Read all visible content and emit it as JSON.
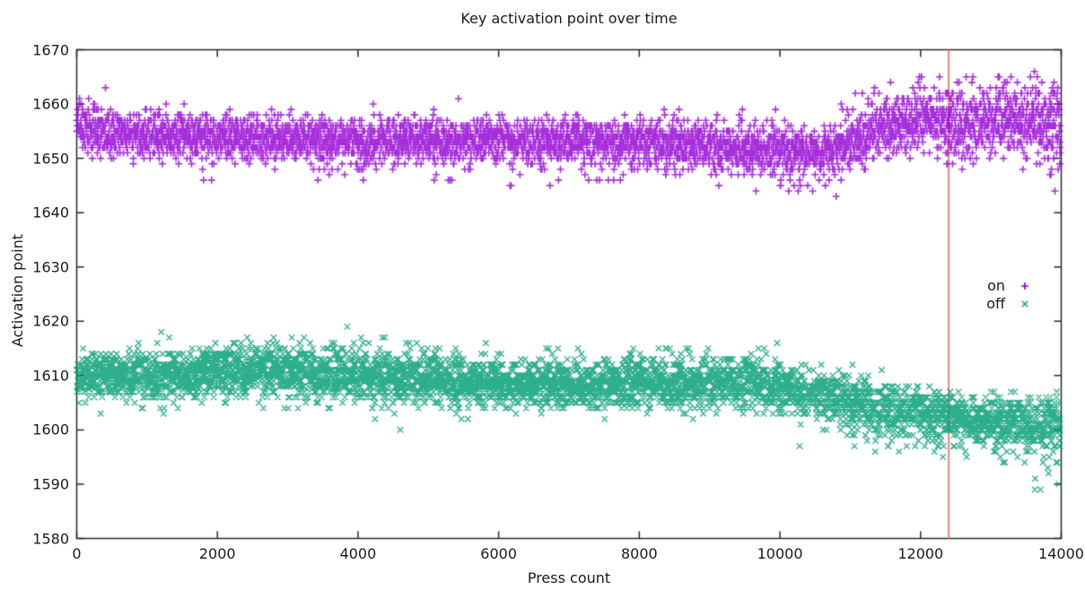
{
  "page": {
    "background": "#ffffff"
  },
  "chart_data": {
    "type": "scatter",
    "title": "Key activation point over time",
    "xlabel": "Press count",
    "ylabel": "Activation point",
    "xlim": [
      0,
      14000
    ],
    "ylim": [
      1580,
      1670
    ],
    "xticks": [
      0,
      2000,
      4000,
      6000,
      8000,
      10000,
      12000,
      14000
    ],
    "yticks": [
      1580,
      1590,
      1600,
      1610,
      1620,
      1630,
      1640,
      1650,
      1660,
      1670
    ],
    "grid": false,
    "y_values_integer": true,
    "border_color": "#2a2a2a",
    "tick_length": 8,
    "legend": {
      "position": "inside-right",
      "entries": [
        {
          "label": "on",
          "marker": "plus",
          "color": "#9400d3"
        },
        {
          "label": "off",
          "marker": "cross",
          "color": "#009e73"
        }
      ]
    },
    "vline": {
      "x": 12400,
      "color": "#f2807a",
      "width": 2
    },
    "series": [
      {
        "name": "on",
        "marker": "plus",
        "color": "#9400d3",
        "n_points": 5200,
        "seed": 42,
        "trend": [
          [
            0,
            1655.6,
            2.2
          ],
          [
            300,
            1654.8,
            2.1
          ],
          [
            1500,
            1654.0,
            2.0
          ],
          [
            3000,
            1653.6,
            1.9
          ],
          [
            5000,
            1653.3,
            1.9
          ],
          [
            7000,
            1653.2,
            2.0
          ],
          [
            8500,
            1652.8,
            2.1
          ],
          [
            9500,
            1652.0,
            2.2
          ],
          [
            10300,
            1651.2,
            2.1
          ],
          [
            10800,
            1651.5,
            2.2
          ],
          [
            11300,
            1654.5,
            2.6
          ],
          [
            11700,
            1656.5,
            2.7
          ],
          [
            12100,
            1657.5,
            2.9
          ],
          [
            12400,
            1656.0,
            3.0
          ],
          [
            12700,
            1656.0,
            3.1
          ],
          [
            13200,
            1657.5,
            3.0
          ],
          [
            13600,
            1657.0,
            3.2
          ],
          [
            14000,
            1655.5,
            3.4
          ]
        ],
        "tails": [
          {
            "range": [
              0,
              300
            ],
            "prob": 0.1,
            "offset": [
              3,
              6
            ]
          },
          {
            "range": [
              800,
              10800
            ],
            "prob": 0.012,
            "offset": [
              -8,
              -4
            ]
          },
          {
            "range": [
              10800,
              14000
            ],
            "prob": 0.03,
            "offset": [
              4,
              9
            ]
          },
          {
            "range": [
              13700,
              14000
            ],
            "prob": 0.05,
            "offset": [
              -12,
              -6
            ]
          }
        ]
      },
      {
        "name": "off",
        "marker": "cross",
        "color": "#009e73",
        "n_points": 5200,
        "seed": 1337,
        "trend": [
          [
            0,
            1609.8,
            2.2
          ],
          [
            1200,
            1610.0,
            2.2
          ],
          [
            2400,
            1610.8,
            2.4
          ],
          [
            3000,
            1610.6,
            2.4
          ],
          [
            4000,
            1609.6,
            2.3
          ],
          [
            5500,
            1608.8,
            2.2
          ],
          [
            7000,
            1608.2,
            2.2
          ],
          [
            8800,
            1608.4,
            2.3
          ],
          [
            9700,
            1608.3,
            2.4
          ],
          [
            10400,
            1606.8,
            2.3
          ],
          [
            11000,
            1605.0,
            2.4
          ],
          [
            11500,
            1603.8,
            2.5
          ],
          [
            12000,
            1603.4,
            2.3
          ],
          [
            12400,
            1602.8,
            2.2
          ],
          [
            12700,
            1601.8,
            2.1
          ],
          [
            13300,
            1601.5,
            2.1
          ],
          [
            14000,
            1601.2,
            2.4
          ]
        ],
        "tails": [
          {
            "range": [
              1800,
              9800
            ],
            "prob": 0.03,
            "offset": [
              3,
              7
            ]
          },
          {
            "range": [
              10800,
              12400
            ],
            "prob": 0.025,
            "offset": [
              -8,
              -3
            ]
          },
          {
            "range": [
              12400,
              14000
            ],
            "prob": 0.03,
            "offset": [
              -8,
              -3
            ]
          },
          {
            "range": [
              13600,
              14000
            ],
            "prob": 0.04,
            "offset": [
              -13,
              -7
            ]
          }
        ]
      }
    ]
  }
}
